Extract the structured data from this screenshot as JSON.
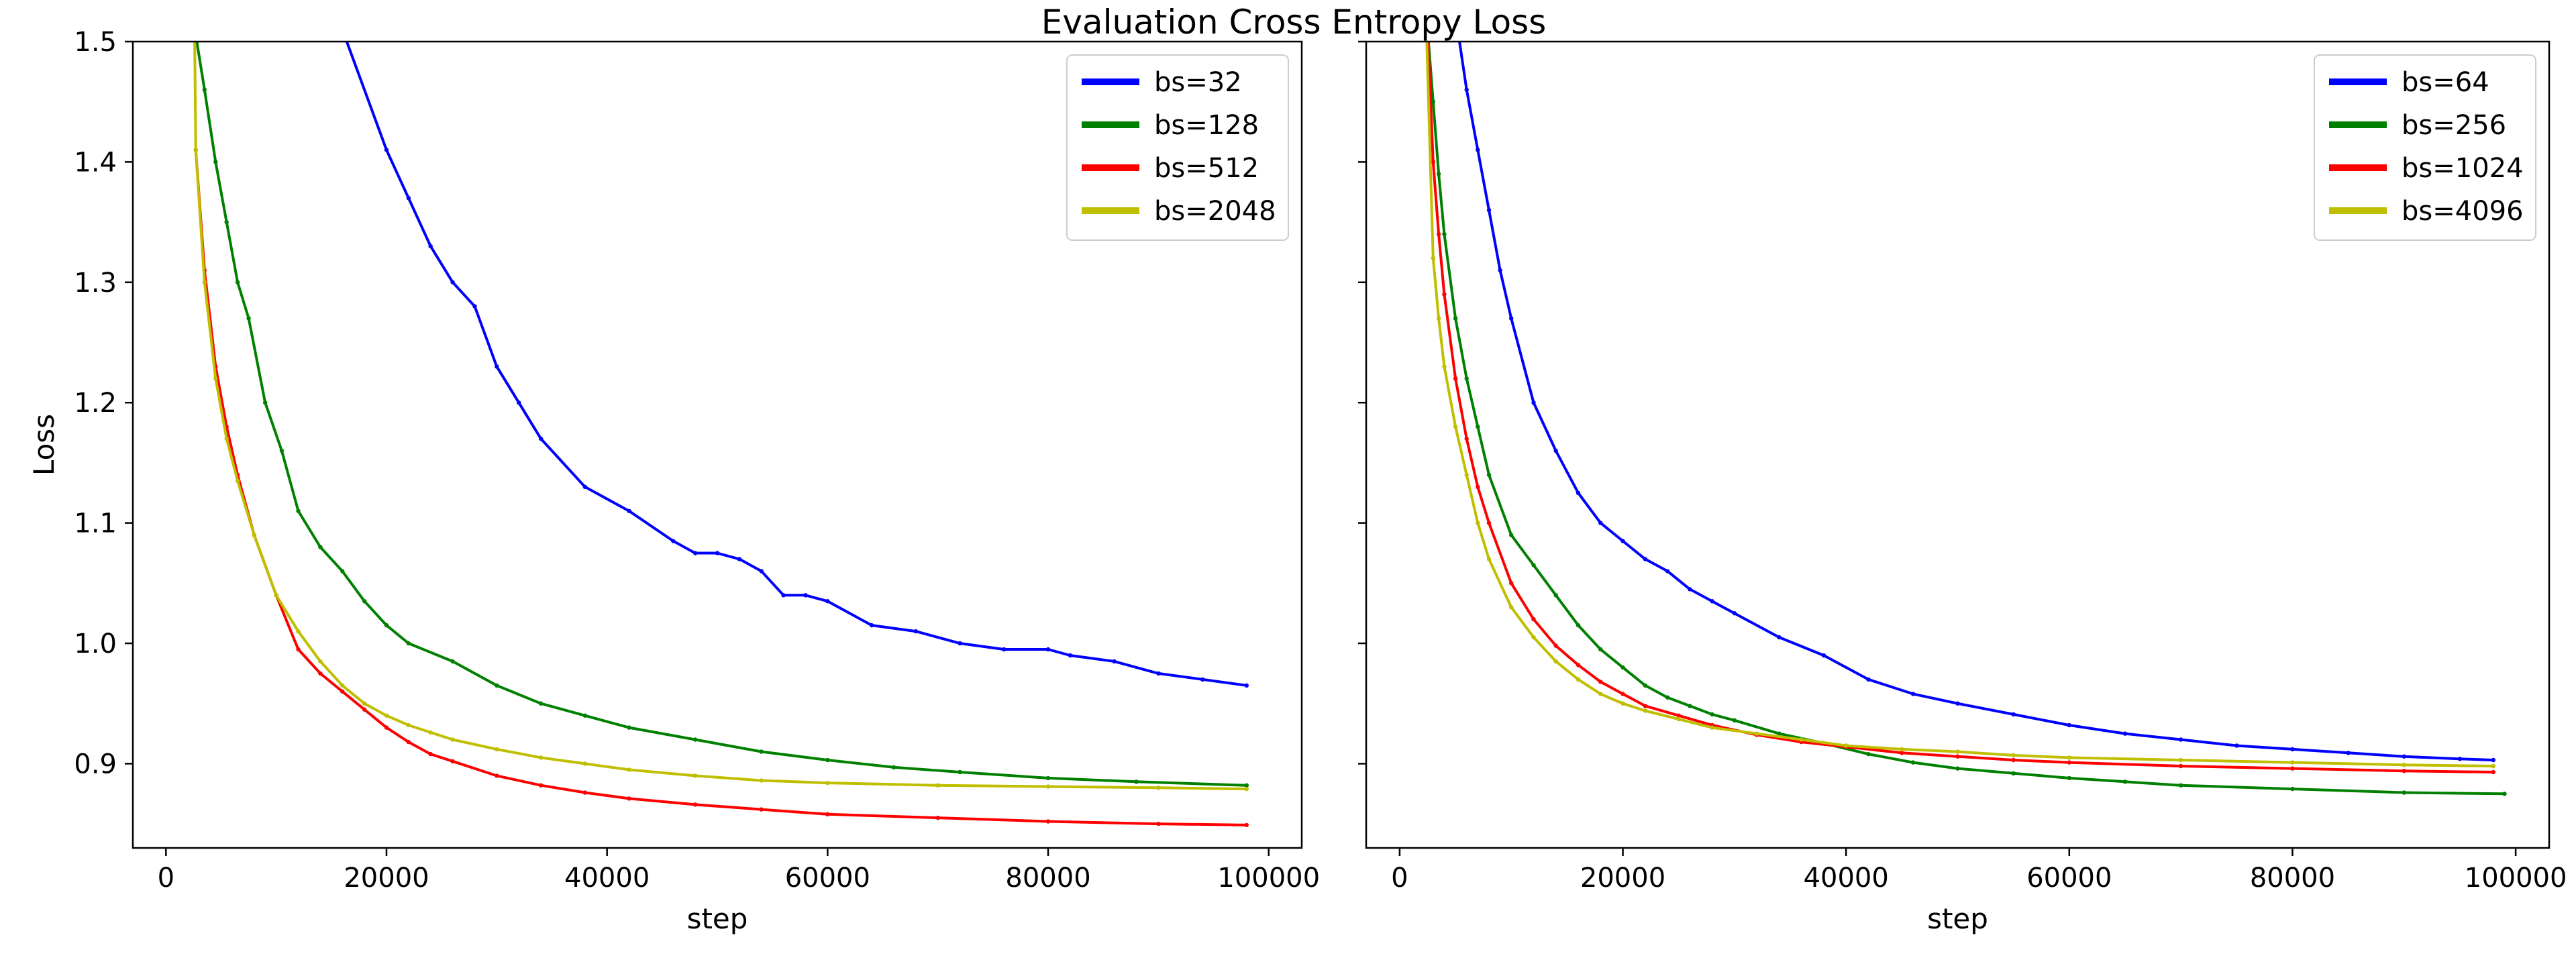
{
  "figure": {
    "title": "Evaluation Cross Entropy Loss"
  },
  "chart_data": [
    {
      "type": "line",
      "xlabel": "step",
      "ylabel": "Loss",
      "xlim": [
        -3000,
        103000
      ],
      "ylim": [
        0.83,
        1.5
      ],
      "xticks": [
        0,
        20000,
        40000,
        60000,
        80000,
        100000
      ],
      "yticks": [
        0.9,
        1.0,
        1.1,
        1.2,
        1.3,
        1.4,
        1.5
      ],
      "ytick_labels": [
        "0.9",
        "1.0",
        "1.1",
        "1.2",
        "1.3",
        "1.4",
        "1.5"
      ],
      "grid": false,
      "legend": "top-right",
      "series": [
        {
          "name": "bs=32",
          "color": "#0000ff",
          "x": [
            16000,
            20000,
            22000,
            24000,
            26000,
            28000,
            30000,
            32000,
            34000,
            38000,
            42000,
            46000,
            48000,
            50000,
            52000,
            54000,
            56000,
            58000,
            60000,
            64000,
            68000,
            72000,
            76000,
            80000,
            82000,
            86000,
            90000,
            94000,
            98000
          ],
          "y": [
            1.51,
            1.41,
            1.37,
            1.33,
            1.3,
            1.28,
            1.23,
            1.2,
            1.17,
            1.13,
            1.11,
            1.085,
            1.075,
            1.075,
            1.07,
            1.06,
            1.04,
            1.04,
            1.035,
            1.015,
            1.01,
            1.0,
            0.995,
            0.995,
            0.99,
            0.985,
            0.975,
            0.97,
            0.965
          ]
        },
        {
          "name": "bs=128",
          "color": "#008000",
          "x": [
            2800,
            3500,
            4500,
            5500,
            6500,
            7500,
            9000,
            10500,
            12000,
            14000,
            16000,
            18000,
            20000,
            22000,
            26000,
            30000,
            34000,
            38000,
            42000,
            48000,
            54000,
            60000,
            66000,
            72000,
            80000,
            88000,
            98000
          ],
          "y": [
            1.5,
            1.46,
            1.4,
            1.35,
            1.3,
            1.27,
            1.2,
            1.16,
            1.11,
            1.08,
            1.06,
            1.035,
            1.015,
            1.0,
            0.985,
            0.965,
            0.95,
            0.94,
            0.93,
            0.92,
            0.91,
            0.903,
            0.897,
            0.893,
            0.888,
            0.885,
            0.882
          ]
        },
        {
          "name": "bs=512",
          "color": "#ff0000",
          "x": [
            2700,
            3500,
            4500,
            5500,
            6500,
            8000,
            10000,
            12000,
            14000,
            16000,
            18000,
            20000,
            22000,
            24000,
            26000,
            30000,
            34000,
            38000,
            42000,
            48000,
            54000,
            60000,
            70000,
            80000,
            90000,
            98000
          ],
          "y": [
            1.41,
            1.31,
            1.23,
            1.18,
            1.14,
            1.09,
            1.04,
            0.995,
            0.975,
            0.96,
            0.945,
            0.93,
            0.918,
            0.908,
            0.902,
            0.89,
            0.882,
            0.876,
            0.871,
            0.866,
            0.862,
            0.858,
            0.855,
            0.852,
            0.85,
            0.849
          ]
        },
        {
          "name": "bs=2048",
          "color": "#bfbf00",
          "x": [
            2600,
            2700,
            3500,
            4500,
            5500,
            6500,
            8000,
            10000,
            12000,
            14000,
            16000,
            18000,
            20000,
            22000,
            24000,
            26000,
            30000,
            34000,
            38000,
            42000,
            48000,
            54000,
            60000,
            70000,
            80000,
            90000,
            98000
          ],
          "y": [
            1.51,
            1.41,
            1.3,
            1.22,
            1.17,
            1.135,
            1.09,
            1.04,
            1.01,
            0.985,
            0.965,
            0.95,
            0.94,
            0.932,
            0.926,
            0.92,
            0.912,
            0.905,
            0.9,
            0.895,
            0.89,
            0.886,
            0.884,
            0.882,
            0.881,
            0.88,
            0.879
          ]
        }
      ]
    },
    {
      "type": "line",
      "xlabel": "step",
      "ylabel": "",
      "xlim": [
        -3000,
        103000
      ],
      "ylim": [
        0.83,
        1.5
      ],
      "xticks": [
        0,
        20000,
        40000,
        60000,
        80000,
        100000
      ],
      "yticks": [
        0.9,
        1.0,
        1.1,
        1.2,
        1.3,
        1.4,
        1.5
      ],
      "grid": false,
      "legend": "top-right",
      "series": [
        {
          "name": "bs=64",
          "color": "#0000ff",
          "x": [
            5200,
            6000,
            7000,
            8000,
            9000,
            10000,
            12000,
            14000,
            16000,
            18000,
            20000,
            22000,
            24000,
            26000,
            28000,
            30000,
            34000,
            38000,
            42000,
            46000,
            50000,
            55000,
            60000,
            65000,
            70000,
            75000,
            80000,
            85000,
            90000,
            95000,
            98000
          ],
          "y": [
            1.51,
            1.46,
            1.41,
            1.36,
            1.31,
            1.27,
            1.2,
            1.16,
            1.125,
            1.1,
            1.085,
            1.07,
            1.06,
            1.045,
            1.035,
            1.025,
            1.005,
            0.99,
            0.97,
            0.958,
            0.95,
            0.941,
            0.932,
            0.925,
            0.92,
            0.915,
            0.912,
            0.909,
            0.906,
            0.904,
            0.903
          ]
        },
        {
          "name": "bs=256",
          "color": "#008000",
          "x": [
            2500,
            3000,
            3500,
            4000,
            5000,
            6000,
            7000,
            8000,
            10000,
            12000,
            14000,
            16000,
            18000,
            20000,
            22000,
            24000,
            26000,
            28000,
            30000,
            34000,
            38000,
            42000,
            46000,
            50000,
            55000,
            60000,
            65000,
            70000,
            80000,
            90000,
            99000
          ],
          "y": [
            1.51,
            1.45,
            1.39,
            1.34,
            1.27,
            1.22,
            1.18,
            1.14,
            1.09,
            1.065,
            1.04,
            1.015,
            0.995,
            0.98,
            0.965,
            0.955,
            0.948,
            0.941,
            0.936,
            0.925,
            0.917,
            0.908,
            0.901,
            0.896,
            0.892,
            0.888,
            0.885,
            0.882,
            0.879,
            0.876,
            0.875
          ]
        },
        {
          "name": "bs=1024",
          "color": "#ff0000",
          "x": [
            2500,
            3000,
            3500,
            4000,
            5000,
            6000,
            7000,
            8000,
            10000,
            12000,
            14000,
            16000,
            18000,
            20000,
            22000,
            25000,
            28000,
            32000,
            36000,
            40000,
            45000,
            50000,
            55000,
            60000,
            70000,
            80000,
            90000,
            98000
          ],
          "y": [
            1.51,
            1.4,
            1.34,
            1.29,
            1.22,
            1.17,
            1.13,
            1.1,
            1.05,
            1.02,
            0.998,
            0.982,
            0.968,
            0.958,
            0.948,
            0.94,
            0.932,
            0.924,
            0.918,
            0.914,
            0.909,
            0.906,
            0.903,
            0.901,
            0.898,
            0.896,
            0.894,
            0.893
          ]
        },
        {
          "name": "bs=4096",
          "color": "#bfbf00",
          "x": [
            2400,
            3000,
            3500,
            4000,
            5000,
            6000,
            7000,
            8000,
            10000,
            12000,
            14000,
            16000,
            18000,
            20000,
            22000,
            25000,
            28000,
            32000,
            36000,
            40000,
            45000,
            50000,
            55000,
            60000,
            70000,
            80000,
            90000,
            98000
          ],
          "y": [
            1.51,
            1.32,
            1.27,
            1.23,
            1.18,
            1.14,
            1.1,
            1.07,
            1.03,
            1.005,
            0.985,
            0.97,
            0.958,
            0.95,
            0.944,
            0.937,
            0.93,
            0.925,
            0.92,
            0.915,
            0.912,
            0.91,
            0.907,
            0.905,
            0.903,
            0.901,
            0.899,
            0.898
          ]
        }
      ]
    }
  ]
}
